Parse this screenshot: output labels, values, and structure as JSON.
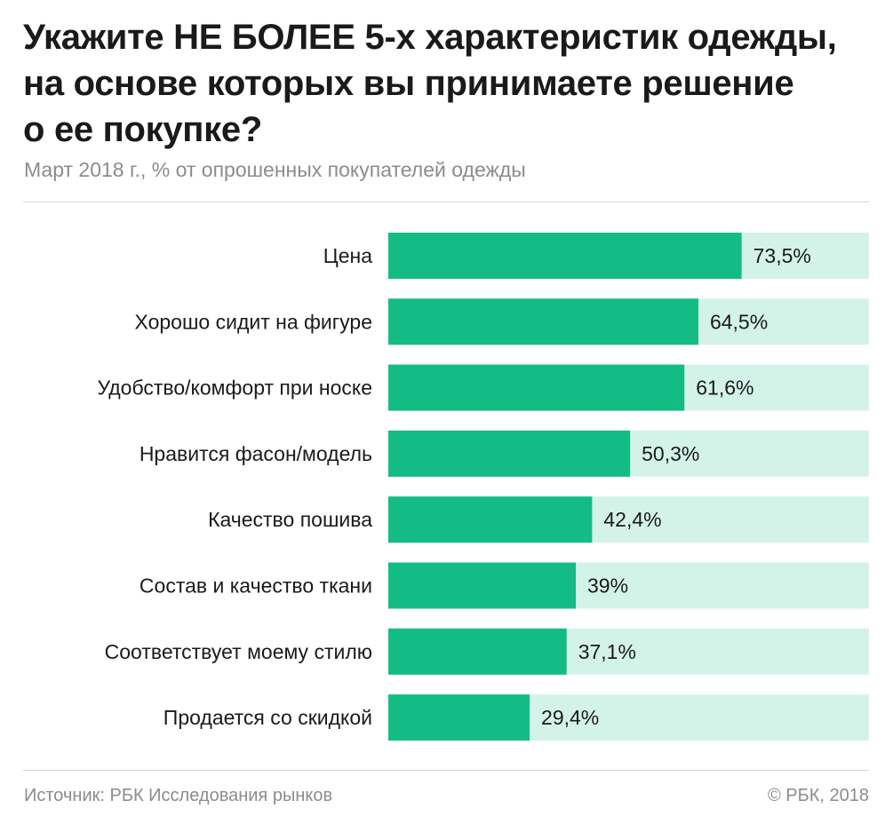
{
  "header": {
    "title_lines": [
      "Укажите НЕ БОЛЕЕ 5-х характеристик одежды,",
      "на основе которых вы принимаете решение",
      "о ее покупке?"
    ],
    "subtitle": "Март 2018 г., % от опрошенных покупателей одежды"
  },
  "chart_data": {
    "type": "bar",
    "orientation": "horizontal",
    "categories": [
      "Цена",
      "Хорошо сидит на фигуре",
      "Удобство/комфорт при носке",
      "Нравится фасон/модель",
      "Качество пошива",
      "Состав и качество ткани",
      "Соответствует моему стилю",
      "Продается со скидкой"
    ],
    "values": [
      73.5,
      64.5,
      61.6,
      50.3,
      42.4,
      39,
      37.1,
      29.4
    ],
    "value_labels": [
      "73,5%",
      "64,5%",
      "61,6%",
      "50,3%",
      "42,4%",
      "39%",
      "37,1%",
      "29,4%"
    ],
    "xlim": [
      0,
      100
    ],
    "grid": false,
    "legend": "none",
    "colors": {
      "bar": "#13bc85",
      "track": "#d4f3e8",
      "label": "#1a1a1a"
    }
  },
  "footer": {
    "source": "Источник: РБК Исследования рынков",
    "copyright": "© РБК, 2018"
  }
}
